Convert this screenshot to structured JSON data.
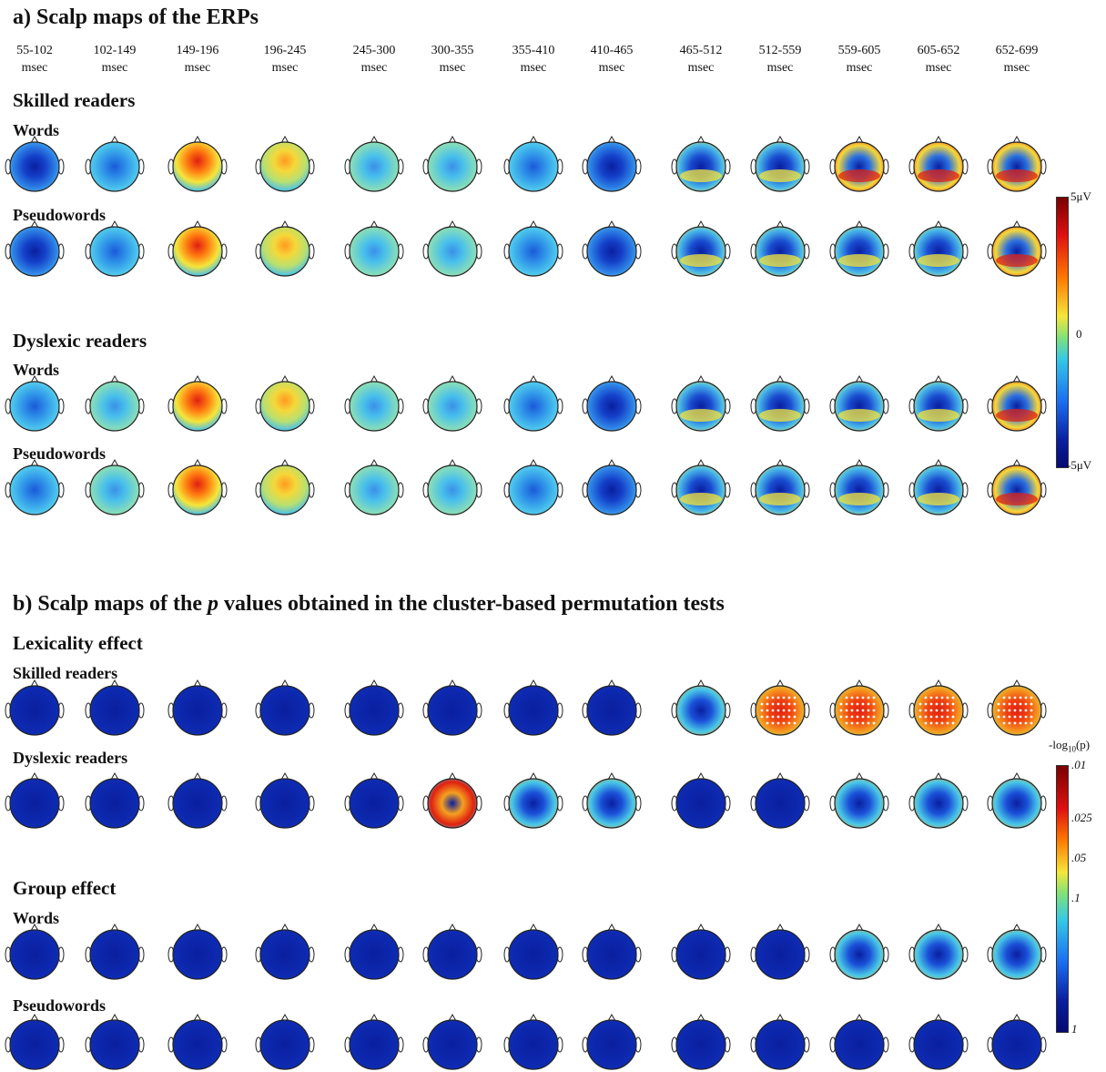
{
  "panel_a": {
    "title": "a) Scalp maps of the ERPs",
    "time_windows": [
      {
        "range": "55-102",
        "unit": "msec"
      },
      {
        "range": "102-149",
        "unit": "msec"
      },
      {
        "range": "149-196",
        "unit": "msec"
      },
      {
        "range": "196-245",
        "unit": "msec"
      },
      {
        "range": "245-300",
        "unit": "msec"
      },
      {
        "range": "300-355",
        "unit": "msec"
      },
      {
        "range": "355-410",
        "unit": "msec"
      },
      {
        "range": "410-465",
        "unit": "msec"
      },
      {
        "range": "465-512",
        "unit": "msec"
      },
      {
        "range": "512-559",
        "unit": "msec"
      },
      {
        "range": "559-605",
        "unit": "msec"
      },
      {
        "range": "605-652",
        "unit": "msec"
      },
      {
        "range": "652-699",
        "unit": "msec"
      }
    ],
    "skilled_label": "Skilled readers",
    "dyslexic_label": "Dyslexic readers",
    "words_label": "Words",
    "pseudowords_label": "Pseudowords",
    "colorbar": {
      "max": "5μV",
      "mid": "0",
      "min": "-5μV"
    }
  },
  "panel_b": {
    "title_prefix": "b) Scalp maps of the ",
    "title_italic": "p",
    "title_suffix": " values obtained in the cluster-based permutation tests",
    "lexicality_label": "Lexicality effect",
    "skilled_label": "Skilled readers",
    "dyslexic_label": "Dyslexic readers",
    "group_label": "Group effect",
    "words_label": "Words",
    "pseudowords_label": "Pseudowords",
    "colorbar": {
      "title_prefix": "-log",
      "title_sub": "10",
      "title_suffix": "(p)",
      "ticks": [
        ".01",
        ".025",
        ".05",
        ".1",
        "1"
      ]
    }
  },
  "colors": {
    "map_blue": "#0a1fa0",
    "map_cyan": "#35c8e8",
    "map_yellow": "#f5e63a",
    "map_red": "#e02010"
  }
}
